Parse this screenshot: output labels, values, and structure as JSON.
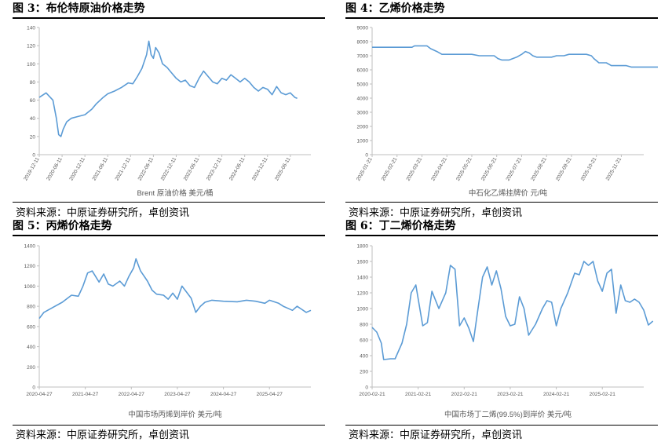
{
  "colors": {
    "line": "#5B9BD5",
    "axis": "#bfbfbf",
    "tick_text": "#595959",
    "rule": "#000000"
  },
  "panels": [
    {
      "title": "图 3：布伦特原油价格走势",
      "source": "资料来源：中原证券研究所，卓创资讯",
      "chart_data": {
        "type": "line",
        "xlabel": "Brent 原油价格 美元/桶",
        "ylim": [
          0,
          140
        ],
        "yticks": [
          0,
          20,
          40,
          60,
          80,
          100,
          120,
          140
        ],
        "xticks": [
          "2019-12-11",
          "2020-06-11",
          "2020-12-11",
          "2021-06-11",
          "2021-12-11",
          "2022-06-11",
          "2022-12-11",
          "2023-06-11",
          "2023-12-11",
          "2024-06-11",
          "2024-12-11",
          "2025-06-11"
        ],
        "x_rotated": true,
        "series": [
          {
            "values": [
              [
                0,
                63
              ],
              [
                0.3,
                68
              ],
              [
                0.6,
                60
              ],
              [
                0.75,
                40
              ],
              [
                0.85,
                22
              ],
              [
                0.95,
                20
              ],
              [
                1.05,
                28
              ],
              [
                1.2,
                36
              ],
              [
                1.4,
                40
              ],
              [
                1.7,
                42
              ],
              [
                2.0,
                44
              ],
              [
                2.3,
                50
              ],
              [
                2.5,
                56
              ],
              [
                2.8,
                63
              ],
              [
                3.0,
                67
              ],
              [
                3.3,
                70
              ],
              [
                3.6,
                74
              ],
              [
                3.9,
                79
              ],
              [
                4.1,
                78
              ],
              [
                4.3,
                86
              ],
              [
                4.5,
                95
              ],
              [
                4.7,
                110
              ],
              [
                4.8,
                125
              ],
              [
                4.9,
                110
              ],
              [
                5.0,
                106
              ],
              [
                5.1,
                118
              ],
              [
                5.25,
                112
              ],
              [
                5.4,
                100
              ],
              [
                5.6,
                96
              ],
              [
                5.8,
                90
              ],
              [
                6.0,
                84
              ],
              [
                6.2,
                80
              ],
              [
                6.4,
                82
              ],
              [
                6.6,
                76
              ],
              [
                6.8,
                74
              ],
              [
                7.0,
                84
              ],
              [
                7.2,
                92
              ],
              [
                7.4,
                86
              ],
              [
                7.6,
                80
              ],
              [
                7.8,
                78
              ],
              [
                8.0,
                84
              ],
              [
                8.2,
                82
              ],
              [
                8.4,
                88
              ],
              [
                8.6,
                84
              ],
              [
                8.8,
                80
              ],
              [
                9.0,
                84
              ],
              [
                9.2,
                80
              ],
              [
                9.4,
                74
              ],
              [
                9.6,
                70
              ],
              [
                9.8,
                74
              ],
              [
                10.0,
                72
              ],
              [
                10.2,
                66
              ],
              [
                10.4,
                75
              ],
              [
                10.6,
                68
              ],
              [
                10.8,
                66
              ],
              [
                11.0,
                68
              ],
              [
                11.2,
                63
              ],
              [
                11.3,
                62
              ]
            ]
          }
        ]
      }
    },
    {
      "title": "图 4：乙烯价格走势",
      "source": "资料来源：中原证券研究所，卓创资讯",
      "chart_data": {
        "type": "line",
        "xlabel": "中石化乙烯挂牌价 元/吨",
        "ylim": [
          0,
          9000
        ],
        "yticks": [
          0,
          1000,
          2000,
          3000,
          4000,
          5000,
          6000,
          7000,
          8000,
          9000
        ],
        "xticks": [
          "2025-01-21",
          "2025-02-21",
          "2025-03-21",
          "2025-04-21",
          "2025-05-21",
          "2025-06-21",
          "2025-07-21",
          "2025-08-21",
          "2025-09-21",
          "2025-10-21",
          "2025-11-21"
        ],
        "x_rotated": true,
        "series": [
          {
            "values": [
              [
                0,
                7600
              ],
              [
                1.6,
                7600
              ],
              [
                1.7,
                7700
              ],
              [
                2.2,
                7700
              ],
              [
                2.35,
                7500
              ],
              [
                2.6,
                7300
              ],
              [
                2.8,
                7100
              ],
              [
                4.0,
                7100
              ],
              [
                4.3,
                7000
              ],
              [
                4.9,
                7000
              ],
              [
                5.05,
                6800
              ],
              [
                5.2,
                6700
              ],
              [
                5.5,
                6700
              ],
              [
                5.8,
                6900
              ],
              [
                6.0,
                7100
              ],
              [
                6.15,
                7300
              ],
              [
                6.3,
                7200
              ],
              [
                6.45,
                7000
              ],
              [
                6.6,
                6900
              ],
              [
                7.2,
                6900
              ],
              [
                7.4,
                7000
              ],
              [
                7.7,
                7000
              ],
              [
                7.9,
                7100
              ],
              [
                8.6,
                7100
              ],
              [
                8.8,
                7000
              ],
              [
                8.9,
                6800
              ],
              [
                9.1,
                6500
              ],
              [
                9.4,
                6500
              ],
              [
                9.6,
                6300
              ],
              [
                10.2,
                6300
              ],
              [
                10.4,
                6200
              ],
              [
                11.5,
                6200
              ],
              [
                11.7,
                6150
              ]
            ]
          }
        ]
      }
    },
    {
      "title": "图 5：丙烯价格走势",
      "source": "资料来源：中原证券研究所，卓创资讯",
      "chart_data": {
        "type": "line",
        "xlabel": "中国市场丙烯到岸价 美元/吨",
        "ylim": [
          0,
          1400
        ],
        "yticks": [
          0,
          200,
          400,
          600,
          800,
          1000,
          1200,
          1400
        ],
        "xticks": [
          "2020-04-27",
          "2021-04-27",
          "2022-04-27",
          "2023-04-27",
          "2024-04-27",
          "2025-04-27"
        ],
        "x_rotated": false,
        "series": [
          {
            "values": [
              [
                0,
                680
              ],
              [
                0.1,
                740
              ],
              [
                0.3,
                790
              ],
              [
                0.5,
                840
              ],
              [
                0.7,
                910
              ],
              [
                0.85,
                900
              ],
              [
                0.95,
                1000
              ],
              [
                1.05,
                1130
              ],
              [
                1.15,
                1150
              ],
              [
                1.3,
                1040
              ],
              [
                1.4,
                1120
              ],
              [
                1.5,
                1020
              ],
              [
                1.6,
                1000
              ],
              [
                1.75,
                1050
              ],
              [
                1.85,
                1000
              ],
              [
                1.95,
                1100
              ],
              [
                2.05,
                1180
              ],
              [
                2.1,
                1270
              ],
              [
                2.2,
                1150
              ],
              [
                2.35,
                1050
              ],
              [
                2.45,
                960
              ],
              [
                2.55,
                920
              ],
              [
                2.7,
                910
              ],
              [
                2.8,
                870
              ],
              [
                2.9,
                930
              ],
              [
                3.0,
                870
              ],
              [
                3.1,
                1000
              ],
              [
                3.2,
                940
              ],
              [
                3.3,
                880
              ],
              [
                3.4,
                740
              ],
              [
                3.5,
                800
              ],
              [
                3.6,
                840
              ],
              [
                3.75,
                860
              ],
              [
                4.0,
                850
              ],
              [
                4.3,
                845
              ],
              [
                4.5,
                860
              ],
              [
                4.7,
                850
              ],
              [
                4.9,
                830
              ],
              [
                5.0,
                860
              ],
              [
                5.2,
                830
              ],
              [
                5.3,
                800
              ],
              [
                5.4,
                780
              ],
              [
                5.5,
                760
              ],
              [
                5.6,
                800
              ],
              [
                5.7,
                770
              ],
              [
                5.8,
                740
              ],
              [
                5.9,
                760
              ]
            ]
          }
        ]
      }
    },
    {
      "title": "图 6：丁二烯价格走势",
      "source": "资料来源：中原证券研究所，卓创资讯",
      "chart_data": {
        "type": "line",
        "xlabel": "中国市场丁二烯(99.5%)到岸价 美元/吨",
        "ylim": [
          0,
          1800
        ],
        "yticks": [
          0,
          200,
          400,
          600,
          800,
          1000,
          1200,
          1400,
          1600,
          1800
        ],
        "xticks": [
          "2020-02-21",
          "2021-02-21",
          "2022-02-21",
          "2023-02-21",
          "2024-02-21",
          "2025-02-21"
        ],
        "x_rotated": false,
        "series": [
          {
            "values": [
              [
                0,
                760
              ],
              [
                0.1,
                700
              ],
              [
                0.2,
                560
              ],
              [
                0.25,
                350
              ],
              [
                0.4,
                360
              ],
              [
                0.5,
                360
              ],
              [
                0.65,
                560
              ],
              [
                0.75,
                800
              ],
              [
                0.85,
                1200
              ],
              [
                0.95,
                1300
              ],
              [
                1.1,
                780
              ],
              [
                1.2,
                820
              ],
              [
                1.3,
                1220
              ],
              [
                1.45,
                1000
              ],
              [
                1.6,
                1200
              ],
              [
                1.7,
                1550
              ],
              [
                1.8,
                1500
              ],
              [
                1.9,
                780
              ],
              [
                2.0,
                880
              ],
              [
                2.1,
                750
              ],
              [
                2.2,
                580
              ],
              [
                2.3,
                1000
              ],
              [
                2.4,
                1400
              ],
              [
                2.5,
                1530
              ],
              [
                2.6,
                1300
              ],
              [
                2.7,
                1480
              ],
              [
                2.8,
                1250
              ],
              [
                2.9,
                900
              ],
              [
                3.0,
                780
              ],
              [
                3.1,
                800
              ],
              [
                3.2,
                1150
              ],
              [
                3.3,
                1000
              ],
              [
                3.4,
                660
              ],
              [
                3.55,
                800
              ],
              [
                3.7,
                1000
              ],
              [
                3.8,
                1100
              ],
              [
                3.9,
                1080
              ],
              [
                4.0,
                780
              ],
              [
                4.1,
                1000
              ],
              [
                4.25,
                1200
              ],
              [
                4.4,
                1450
              ],
              [
                4.5,
                1430
              ],
              [
                4.6,
                1600
              ],
              [
                4.7,
                1550
              ],
              [
                4.8,
                1600
              ],
              [
                4.9,
                1350
              ],
              [
                5.0,
                1220
              ],
              [
                5.1,
                1450
              ],
              [
                5.2,
                1500
              ],
              [
                5.3,
                940
              ],
              [
                5.4,
                1300
              ],
              [
                5.5,
                1100
              ],
              [
                5.6,
                1080
              ],
              [
                5.7,
                1120
              ],
              [
                5.8,
                1080
              ],
              [
                5.9,
                980
              ],
              [
                6.0,
                790
              ],
              [
                6.1,
                840
              ]
            ]
          }
        ]
      }
    }
  ]
}
